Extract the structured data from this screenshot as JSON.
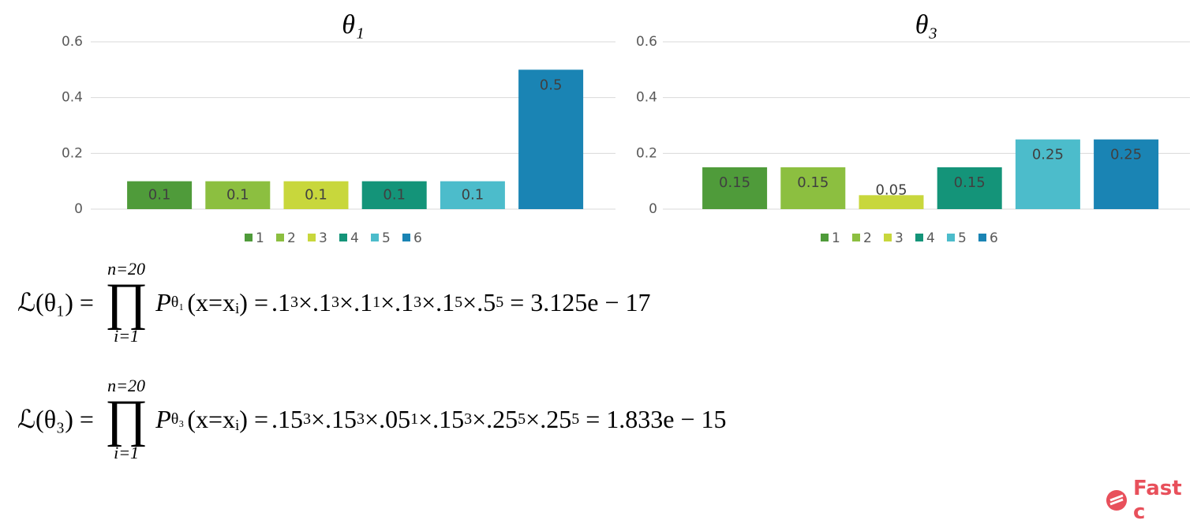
{
  "chart_data": [
    {
      "type": "bar",
      "title": "θ₁",
      "categories": [
        "1",
        "2",
        "3",
        "4",
        "5",
        "6"
      ],
      "values": [
        0.1,
        0.1,
        0.1,
        0.1,
        0.1,
        0.5
      ],
      "colors": [
        "#4f9b3a",
        "#8cbf40",
        "#c8d73c",
        "#149479",
        "#4cbccb",
        "#1a84b4"
      ],
      "ylim": [
        0,
        0.6
      ],
      "yticks": [
        0,
        0.2,
        0.4,
        0.6
      ],
      "grid": true,
      "legend": "bottom",
      "data_labels": true
    },
    {
      "type": "bar",
      "title": "θ₃",
      "categories": [
        "1",
        "2",
        "3",
        "4",
        "5",
        "6"
      ],
      "values": [
        0.15,
        0.15,
        0.05,
        0.15,
        0.25,
        0.25
      ],
      "colors": [
        "#4f9b3a",
        "#8cbf40",
        "#c8d73c",
        "#149479",
        "#4cbccb",
        "#1a84b4"
      ],
      "ylim": [
        0,
        0.6
      ],
      "yticks": [
        0,
        0.2,
        0.4,
        0.6
      ],
      "grid": true,
      "legend": "bottom",
      "data_labels": true
    }
  ],
  "formulas": [
    {
      "lhs": "ℒ(θ₁) =",
      "upper": "n=20",
      "product": "∏",
      "lower": "i=1",
      "term": "P",
      "term_sub": "θ₁",
      "arg": "(x=xᵢ) =",
      "separator": "×",
      "factors": [
        {
          "base": ".1",
          "exp": "3"
        },
        {
          "base": ".1",
          "exp": "3"
        },
        {
          "base": ".1",
          "exp": "1"
        },
        {
          "base": ".1",
          "exp": "3"
        },
        {
          "base": ".1",
          "exp": "5"
        },
        {
          "base": ".5",
          "exp": "5"
        }
      ],
      "result": "= 3.125e − 17"
    },
    {
      "lhs": "ℒ(θ₃) =",
      "upper": "n=20",
      "product": "∏",
      "lower": "i=1",
      "term": "P",
      "term_sub": "θ₃",
      "arg": "(x=xᵢ) =",
      "separator": "×",
      "factors": [
        {
          "base": ".15",
          "exp": "3"
        },
        {
          "base": ".15",
          "exp": "3"
        },
        {
          "base": ".05",
          "exp": "1"
        },
        {
          "base": ".15",
          "exp": "3"
        },
        {
          "base": ".25",
          "exp": "5"
        },
        {
          "base": ".25",
          "exp": "5"
        }
      ],
      "result": "= 1.833e − 15"
    }
  ],
  "logo_text": "Fast c"
}
